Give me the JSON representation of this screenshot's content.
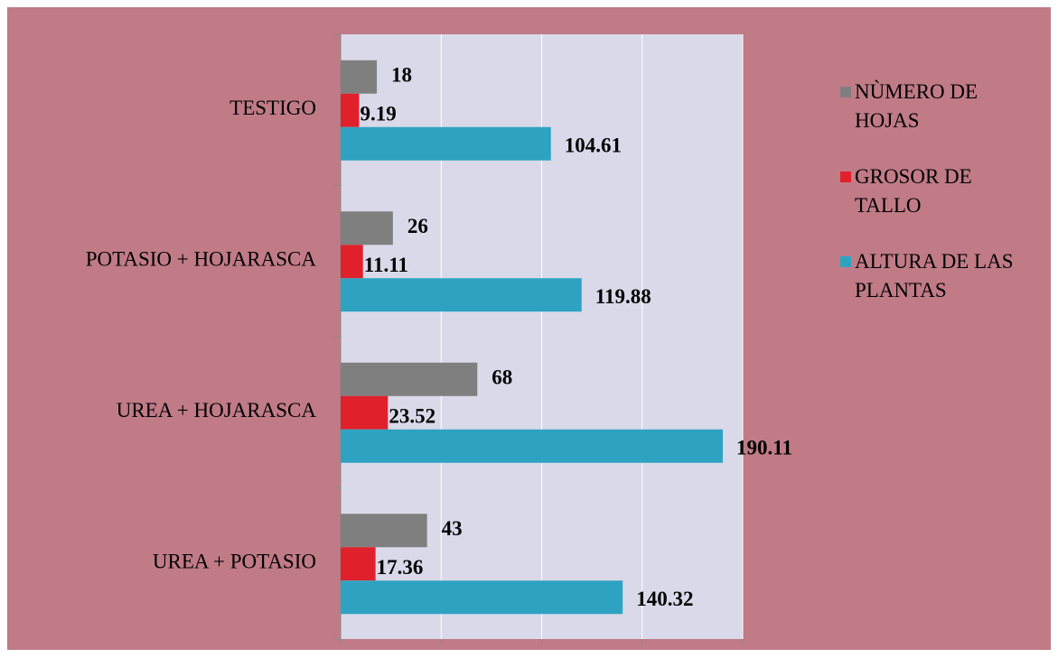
{
  "chart_data": {
    "type": "barh",
    "categories": [
      "TESTIGO",
      "POTASIO + HOJARASCA",
      "UREA + HOJARASCA",
      "UREA + POTASIO"
    ],
    "series": [
      {
        "name": "NÙMERO DE HOJAS",
        "color": "#7f7f7f",
        "values": [
          18,
          26,
          68,
          43
        ]
      },
      {
        "name": "GROSOR DE TALLO",
        "color": "#e0212b",
        "values": [
          9.19,
          11.11,
          23.52,
          17.36
        ]
      },
      {
        "name": "ALTURA DE LAS PLANTAS",
        "color": "#2ea3c1",
        "values": [
          104.61,
          119.88,
          190.11,
          140.32
        ]
      }
    ],
    "xlim": [
      0,
      200
    ],
    "xticks": [
      0,
      50,
      100,
      150,
      200
    ],
    "grid": true,
    "legend": "right"
  }
}
